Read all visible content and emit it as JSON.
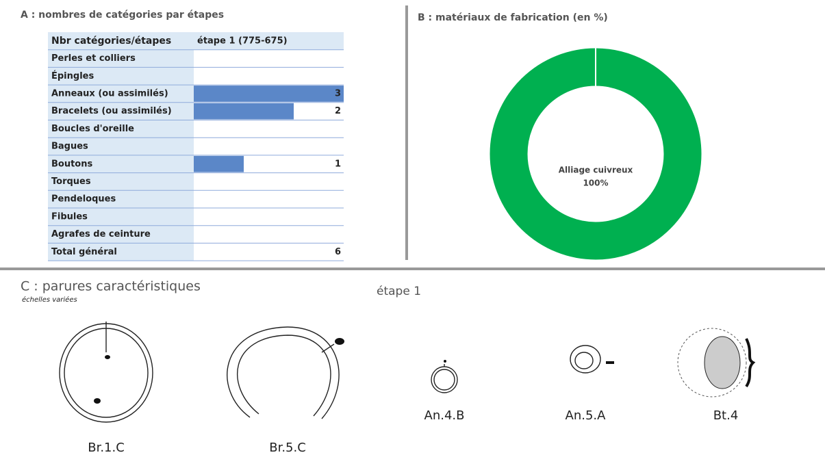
{
  "panel_a": {
    "title": "A : nombres de catégories par étapes",
    "header": [
      "Nbr catégories/étapes",
      "étape 1 (775-675)"
    ],
    "rows": [
      {
        "label": "Perles et colliers",
        "value": null
      },
      {
        "label": "Épingles",
        "value": null
      },
      {
        "label": "Anneaux (ou assimilés)",
        "value": 3
      },
      {
        "label": "Bracelets (ou assimilés)",
        "value": 2
      },
      {
        "label": "Boucles d'oreille",
        "value": null
      },
      {
        "label": "Bagues",
        "value": null
      },
      {
        "label": "Boutons",
        "value": 1
      },
      {
        "label": "Torques",
        "value": null
      },
      {
        "label": "Pendeloques",
        "value": null
      },
      {
        "label": "Fibules",
        "value": null
      },
      {
        "label": "Agrafes de ceinture",
        "value": null
      }
    ],
    "total": {
      "label": "Total général",
      "value": 6
    },
    "xlim": [
      0,
      3
    ],
    "bar_color": "#5b87c8"
  },
  "panel_b": {
    "title": "B : matériaux de fabrication (en %)",
    "type": "donut",
    "slices": [
      {
        "label": "Alliage cuivreux",
        "value": 100,
        "value_label": "100%",
        "color": "#00b050"
      }
    ]
  },
  "panel_c": {
    "title": "C : parures caractéristiques",
    "subtitle": "échelles variées",
    "stage": "étape 1",
    "items": [
      "Br.1.C",
      "Br.5.C",
      "An.4.B",
      "An.5.A",
      "Bt.4"
    ]
  }
}
